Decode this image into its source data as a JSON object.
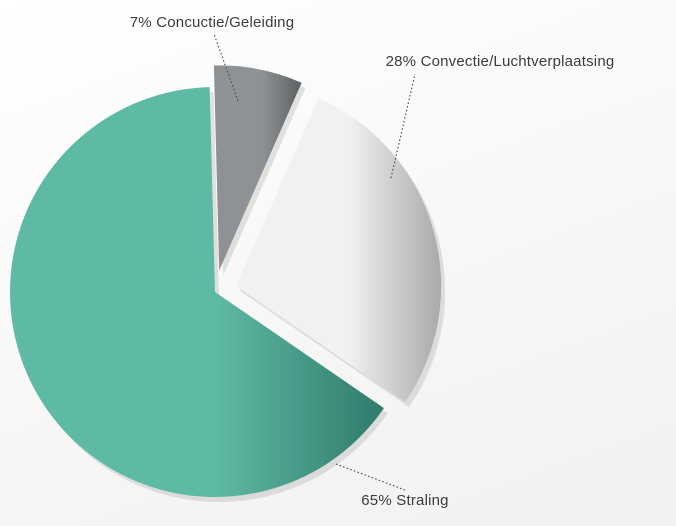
{
  "chart_data": {
    "type": "pie",
    "slices": [
      {
        "label": "Straling",
        "value": 65,
        "display": "65% Straling",
        "color_light": "#5fbaa5",
        "color_dark": "#2f7a6c"
      },
      {
        "label": "Concuctie/Geleiding",
        "value": 7,
        "display": "7% Concuctie/Geleiding",
        "color_light": "#8f9294",
        "color_dark": "#5d6062"
      },
      {
        "label": "Convectie/Luchtverplaatsing",
        "value": 28,
        "display": "28% Convectie/Luchtverplaatsing",
        "color_light": "#f1f1f1",
        "color_dark": "#a9a9ab"
      }
    ],
    "exploded_slices": [
      "Concuctie/Geleiding",
      "Convectie/Luchtverplaatsing"
    ],
    "legend": "none",
    "labels": "outside with dotted leader lines"
  }
}
